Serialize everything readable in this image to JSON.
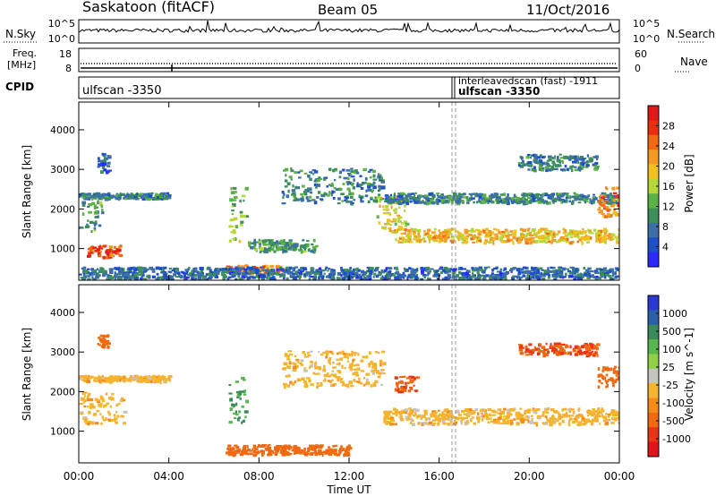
{
  "header": {
    "station": "Saskatoon (fitACF)",
    "beam": "Beam 05",
    "date": "11/Oct/2016"
  },
  "top_strip": {
    "nsky_label": "N.Sky",
    "nsky_ticks": [
      "10^5",
      "10^0"
    ],
    "nsearch_label": "N.Search",
    "nsearch_ticks": [
      "10^5",
      "10^0"
    ],
    "freq_label_line1": "Freq.",
    "freq_label_line2": "[MHz]",
    "freq_ticks": [
      "18",
      "8"
    ],
    "nave_label": "Nave",
    "nave_ticks": [
      "60",
      "0"
    ],
    "cpid_label": "CPID",
    "cpid_text_left": "ulfscan -3350",
    "cpid_text_right_1": "interleavedscan (fast) -1911",
    "cpid_text_right_2": "ulfscan -3350"
  },
  "x_axis": {
    "label": "Time UT",
    "ticks": [
      "00:00",
      "04:00",
      "08:00",
      "12:00",
      "16:00",
      "20:00",
      "00:00"
    ]
  },
  "colors": {
    "power": [
      "#2b2bff",
      "#1d4fc8",
      "#3c6ea8",
      "#3d8f5a",
      "#5cb245",
      "#b5d73a",
      "#f0c020",
      "#f59a20",
      "#f06a12",
      "#e83010",
      "#e01818"
    ],
    "velocity": [
      "#2a3ad0",
      "#2a60a8",
      "#3a8a5a",
      "#58b850",
      "#8fd24a",
      "#c5c5bf",
      "#f5b330",
      "#f58c1a",
      "#ef6a10",
      "#e83515",
      "#e0141c"
    ]
  },
  "chart_data": [
    {
      "type": "heatmap",
      "title": "Power",
      "xlabel": "Time UT",
      "ylabel": "Slant Range [km]",
      "x_unit": "hours UT",
      "xlim": [
        0,
        24
      ],
      "ylim": [
        200,
        4700
      ],
      "yticks": [
        "1000",
        "2000",
        "3000",
        "4000"
      ],
      "colorbar": {
        "label": "Power [dB]",
        "range": [
          0,
          32
        ],
        "ticks": [
          "4",
          "8",
          "12",
          "16",
          "20",
          "24",
          "28"
        ]
      },
      "echo_regions": [
        {
          "t_start": 0.0,
          "t_end": 1.0,
          "range_center": 1900,
          "range_width": 900,
          "power_db": 10
        },
        {
          "t_start": 0.3,
          "t_end": 1.8,
          "range_center": 950,
          "range_width": 300,
          "power_db": 28
        },
        {
          "t_start": 0.0,
          "t_end": 4.0,
          "range_center": 2350,
          "range_width": 150,
          "power_db": 8
        },
        {
          "t_start": 0.8,
          "t_end": 1.3,
          "range_center": 3200,
          "range_width": 500,
          "power_db": 6
        },
        {
          "t_start": 6.6,
          "t_end": 7.4,
          "range_center": 1900,
          "range_width": 1400,
          "power_db": 14
        },
        {
          "t_start": 6.5,
          "t_end": 9.0,
          "range_center": 500,
          "range_width": 200,
          "power_db": 24
        },
        {
          "t_start": 7.5,
          "t_end": 10.5,
          "range_center": 1100,
          "range_width": 300,
          "power_db": 10
        },
        {
          "t_start": 9.0,
          "t_end": 13.5,
          "range_center": 2600,
          "range_width": 900,
          "power_db": 8
        },
        {
          "t_start": 13.2,
          "t_end": 14.5,
          "range_center": 1900,
          "range_width": 900,
          "power_db": 18
        },
        {
          "t_start": 14.0,
          "t_end": 24.0,
          "range_center": 1350,
          "range_width": 350,
          "power_db": 20
        },
        {
          "t_start": 13.5,
          "t_end": 24.0,
          "range_center": 2300,
          "range_width": 250,
          "power_db": 8
        },
        {
          "t_start": 19.5,
          "t_end": 23.0,
          "range_center": 3200,
          "range_width": 400,
          "power_db": 8
        },
        {
          "t_start": 23.0,
          "t_end": 24.0,
          "range_center": 2200,
          "range_width": 800,
          "power_db": 24
        },
        {
          "t_start": 0.0,
          "t_end": 24.0,
          "range_center": 400,
          "range_width": 300,
          "power_db": 6
        }
      ]
    },
    {
      "type": "heatmap",
      "title": "Velocity",
      "xlabel": "Time UT",
      "ylabel": "Slant Range [km]",
      "x_unit": "hours UT",
      "xlim": [
        0,
        24
      ],
      "ylim": [
        200,
        4700
      ],
      "yticks": [
        "1000",
        "2000",
        "3000",
        "4000"
      ],
      "colorbar": {
        "label": "Velocity [m s^-1]",
        "ticks": [
          "1000",
          "500",
          "100",
          "25",
          "-25",
          "-100",
          "-500",
          "-1000"
        ]
      },
      "echo_regions": [
        {
          "t_start": 0.0,
          "t_end": 2.0,
          "range_center": 1600,
          "range_width": 800,
          "velocity": 0
        },
        {
          "t_start": 0.0,
          "t_end": 4.0,
          "range_center": 2350,
          "range_width": 150,
          "velocity": 0
        },
        {
          "t_start": 0.8,
          "t_end": 1.3,
          "range_center": 3300,
          "range_width": 300,
          "velocity": -150
        },
        {
          "t_start": 6.6,
          "t_end": 7.4,
          "range_center": 1800,
          "range_width": 1200,
          "velocity": 300
        },
        {
          "t_start": 6.5,
          "t_end": 12.0,
          "range_center": 550,
          "range_width": 250,
          "velocity": -200
        },
        {
          "t_start": 9.0,
          "t_end": 13.5,
          "range_center": 2600,
          "range_width": 900,
          "velocity": 0
        },
        {
          "t_start": 13.5,
          "t_end": 24.0,
          "range_center": 1400,
          "range_width": 400,
          "velocity": 0
        },
        {
          "t_start": 14.0,
          "t_end": 15.0,
          "range_center": 2200,
          "range_width": 400,
          "velocity": -300
        },
        {
          "t_start": 19.5,
          "t_end": 23.0,
          "range_center": 3100,
          "range_width": 300,
          "velocity": -300
        },
        {
          "t_start": 23.0,
          "t_end": 24.0,
          "range_center": 2400,
          "range_width": 500,
          "velocity": -250
        }
      ]
    }
  ]
}
